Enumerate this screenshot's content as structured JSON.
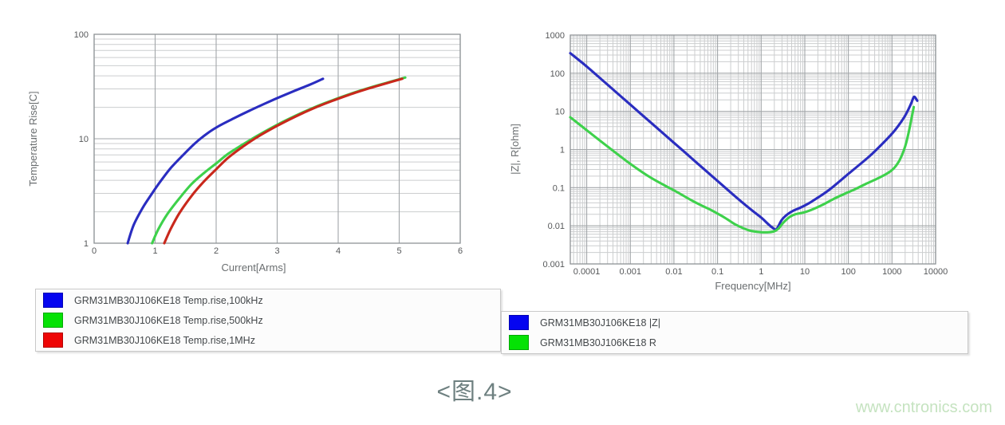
{
  "caption": "<图.4>",
  "watermark": "www.cntronics.com",
  "colors": {
    "curve_blue": "#2a2dc0",
    "curve_green": "#3ed14b",
    "curve_red": "#c9281c",
    "swatch_blue": "#0505f0",
    "swatch_green": "#05e205",
    "swatch_red": "#ee0505",
    "grid_major": "#a2a6a9",
    "grid_minor": "#cccecf",
    "plot_border": "#8e9396",
    "tick_text": "#56585a",
    "axis_title_text": "#6a6e70"
  },
  "legends": {
    "left": {
      "items": [
        {
          "color": "#0505f0",
          "label": "GRM31MB30J106KE18 Temp.rise,100kHz"
        },
        {
          "color": "#05e205",
          "label": "GRM31MB30J106KE18 Temp.rise,500kHz"
        },
        {
          "color": "#ee0505",
          "label": "GRM31MB30J106KE18 Temp.rise,1MHz"
        }
      ]
    },
    "right": {
      "items": [
        {
          "color": "#0505f0",
          "label": "GRM31MB30J106KE18 |Z|"
        },
        {
          "color": "#05e205",
          "label": "GRM31MB30J106KE18 R"
        }
      ]
    }
  },
  "chart_data": [
    {
      "id": "temp-rise",
      "type": "line",
      "title": "",
      "xlabel": "Current[Arms]",
      "ylabel": "Temperature Rise[C]",
      "x_scale": "linear",
      "y_scale": "log",
      "xlim": [
        0,
        6
      ],
      "ylim": [
        1,
        100
      ],
      "x_ticks": [
        0,
        1,
        2,
        3,
        4,
        5,
        6
      ],
      "x_tick_labels": [
        "0",
        "1",
        "2",
        "3",
        "4",
        "5",
        "6"
      ],
      "y_ticks": [
        1,
        10,
        100
      ],
      "y_tick_labels": [
        "1",
        "10",
        "100"
      ],
      "grid": "on",
      "series": [
        {
          "name": "GRM31MB30J106KE18 Temp.rise,100kHz",
          "color": "#2a2dc0",
          "points": [
            [
              0.55,
              1.0
            ],
            [
              0.65,
              1.5
            ],
            [
              0.8,
              2.2
            ],
            [
              0.95,
              3.0
            ],
            [
              1.1,
              4.0
            ],
            [
              1.25,
              5.2
            ],
            [
              1.45,
              6.9
            ],
            [
              1.65,
              9.0
            ],
            [
              1.85,
              11.2
            ],
            [
              2.05,
              13.3
            ],
            [
              2.3,
              15.8
            ],
            [
              2.55,
              18.6
            ],
            [
              2.8,
              21.7
            ],
            [
              3.05,
              25.2
            ],
            [
              3.3,
              29.0
            ],
            [
              3.55,
              33.2
            ],
            [
              3.75,
              37.5
            ]
          ]
        },
        {
          "name": "GRM31MB30J106KE18 Temp.rise,500kHz",
          "color": "#3ed14b",
          "points": [
            [
              0.95,
              1.0
            ],
            [
              1.05,
              1.35
            ],
            [
              1.2,
              1.9
            ],
            [
              1.4,
              2.7
            ],
            [
              1.6,
              3.7
            ],
            [
              1.8,
              4.7
            ],
            [
              2.0,
              5.8
            ],
            [
              2.2,
              7.2
            ],
            [
              2.45,
              8.9
            ],
            [
              2.7,
              10.9
            ],
            [
              3.0,
              13.6
            ],
            [
              3.3,
              16.6
            ],
            [
              3.6,
              19.9
            ],
            [
              3.9,
              23.3
            ],
            [
              4.2,
              26.9
            ],
            [
              4.5,
              30.6
            ],
            [
              4.8,
              34.4
            ],
            [
              5.1,
              38.5
            ]
          ]
        },
        {
          "name": "GRM31MB30J106KE18 Temp.rise,1MHz",
          "color": "#c9281c",
          "points": [
            [
              1.15,
              1.0
            ],
            [
              1.25,
              1.35
            ],
            [
              1.4,
              1.95
            ],
            [
              1.6,
              2.85
            ],
            [
              1.8,
              3.9
            ],
            [
              2.0,
              5.1
            ],
            [
              2.2,
              6.6
            ],
            [
              2.45,
              8.5
            ],
            [
              2.7,
              10.6
            ],
            [
              3.0,
              13.3
            ],
            [
              3.3,
              16.3
            ],
            [
              3.6,
              19.6
            ],
            [
              3.9,
              23.0
            ],
            [
              4.2,
              26.6
            ],
            [
              4.5,
              30.3
            ],
            [
              4.8,
              34.1
            ],
            [
              5.05,
              37.5
            ]
          ]
        }
      ]
    },
    {
      "id": "impedance",
      "type": "line",
      "title": "",
      "xlabel": "Frequency[MHz]",
      "ylabel": "|Z|, R[ohm]",
      "x_scale": "log",
      "y_scale": "log",
      "xlim": [
        4.2e-05,
        10000
      ],
      "ylim": [
        0.001,
        1000
      ],
      "x_ticks": [
        0.0001,
        0.001,
        0.01,
        0.1,
        1,
        10,
        100,
        1000,
        10000
      ],
      "x_tick_labels": [
        "0.0001",
        "0.001",
        "0.01",
        "0.1",
        "1",
        "10",
        "100",
        "1000",
        "10000"
      ],
      "y_ticks": [
        0.001,
        0.01,
        0.1,
        1,
        10,
        100,
        1000
      ],
      "y_tick_labels": [
        "0.001",
        "0.01",
        "0.1",
        "1",
        "10",
        "100",
        "1000"
      ],
      "grid": "on",
      "series": [
        {
          "name": "GRM31MB30J106KE18 |Z|",
          "color": "#2a2dc0",
          "points": [
            [
              4.2e-05,
              335
            ],
            [
              0.0001,
              150
            ],
            [
              0.0003,
              50
            ],
            [
              0.001,
              15
            ],
            [
              0.003,
              5.0
            ],
            [
              0.01,
              1.5
            ],
            [
              0.03,
              0.5
            ],
            [
              0.1,
              0.15
            ],
            [
              0.3,
              0.05
            ],
            [
              0.6,
              0.026
            ],
            [
              1.0,
              0.0165
            ],
            [
              1.4,
              0.0115
            ],
            [
              1.8,
              0.009
            ],
            [
              2.2,
              0.008
            ],
            [
              2.5,
              0.01
            ],
            [
              3.0,
              0.0145
            ],
            [
              4.0,
              0.02
            ],
            [
              5.5,
              0.025
            ],
            [
              8,
              0.03
            ],
            [
              12,
              0.038
            ],
            [
              20,
              0.055
            ],
            [
              35,
              0.085
            ],
            [
              60,
              0.14
            ],
            [
              100,
              0.23
            ],
            [
              180,
              0.4
            ],
            [
              320,
              0.7
            ],
            [
              560,
              1.3
            ],
            [
              1000,
              2.6
            ],
            [
              1400,
              4.2
            ],
            [
              1900,
              7.0
            ],
            [
              2400,
              11.5
            ],
            [
              2800,
              17
            ],
            [
              3100,
              23
            ],
            [
              3300,
              24
            ],
            [
              3600,
              21
            ],
            [
              3800,
              19
            ]
          ]
        },
        {
          "name": "GRM31MB30J106KE18 R",
          "color": "#3ed14b",
          "points": [
            [
              4.2e-05,
              7
            ],
            [
              0.0001,
              3.2
            ],
            [
              0.0003,
              1.2
            ],
            [
              0.001,
              0.42
            ],
            [
              0.003,
              0.18
            ],
            [
              0.01,
              0.085
            ],
            [
              0.03,
              0.042
            ],
            [
              0.07,
              0.026
            ],
            [
              0.15,
              0.016
            ],
            [
              0.25,
              0.011
            ],
            [
              0.4,
              0.0085
            ],
            [
              0.6,
              0.0073
            ],
            [
              1.0,
              0.0068
            ],
            [
              1.5,
              0.0068
            ],
            [
              2.0,
              0.0072
            ],
            [
              2.5,
              0.0085
            ],
            [
              3.2,
              0.012
            ],
            [
              4.5,
              0.017
            ],
            [
              6,
              0.02
            ],
            [
              9,
              0.022
            ],
            [
              14,
              0.026
            ],
            [
              25,
              0.035
            ],
            [
              45,
              0.05
            ],
            [
              80,
              0.068
            ],
            [
              140,
              0.09
            ],
            [
              250,
              0.125
            ],
            [
              450,
              0.17
            ],
            [
              800,
              0.24
            ],
            [
              1100,
              0.32
            ],
            [
              1400,
              0.46
            ],
            [
              1700,
              0.72
            ],
            [
              2000,
              1.2
            ],
            [
              2300,
              2.2
            ],
            [
              2600,
              4.2
            ],
            [
              2900,
              8
            ],
            [
              3150,
              13
            ]
          ]
        }
      ]
    }
  ]
}
